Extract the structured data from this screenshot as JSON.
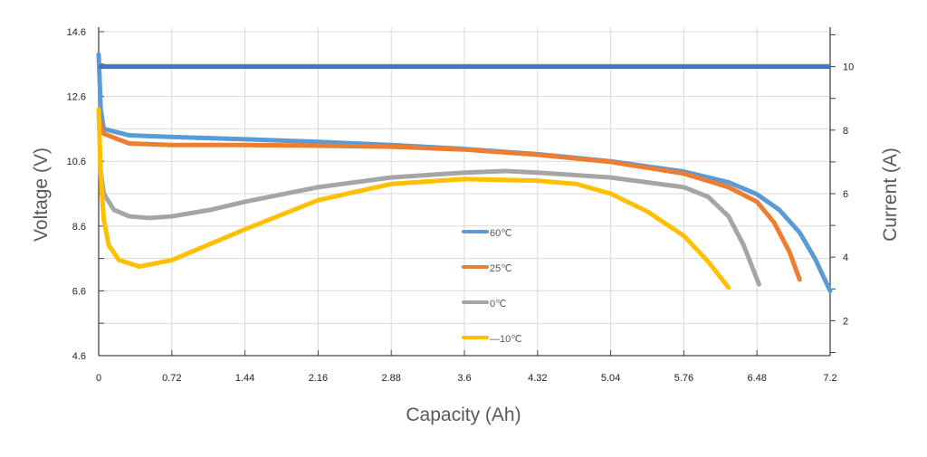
{
  "chart_data": {
    "type": "line",
    "title": "",
    "xlabel": "Capacity (Ah)",
    "ylabel": "Voltage (V)",
    "y2label": "Current (A)",
    "xlim": [
      0,
      7.2
    ],
    "ylim": [
      4.6,
      14.6
    ],
    "y2lim": [
      0.9,
      11.1
    ],
    "grid": true,
    "legend_position": "center",
    "x_ticks": [
      "0",
      "0.72",
      "1.44",
      "2.16",
      "2.88",
      "3.6",
      "4.32",
      "5.04",
      "5.76",
      "6.48",
      "7.2"
    ],
    "y_ticks": [
      "14.6",
      "12.6",
      "10.6",
      "8.6",
      "6.6",
      "4.6"
    ],
    "y2_ticks": [
      "10",
      "8",
      "6",
      "4",
      "2"
    ],
    "current_line": {
      "axis": "right",
      "color": "#4472C4",
      "x": [
        0,
        7.2
      ],
      "y": [
        10,
        10
      ]
    },
    "series": [
      {
        "name": "60℃",
        "color": "#5B9BD5",
        "x": [
          0,
          0.02,
          0.05,
          0.3,
          0.72,
          1.44,
          2.16,
          2.88,
          3.6,
          4.32,
          5.04,
          5.76,
          6.2,
          6.48,
          6.7,
          6.9,
          7.05,
          7.2
        ],
        "y": [
          13.9,
          12.2,
          11.6,
          11.4,
          11.35,
          11.28,
          11.2,
          11.1,
          10.98,
          10.82,
          10.6,
          10.28,
          9.95,
          9.58,
          9.1,
          8.4,
          7.6,
          6.6
        ]
      },
      {
        "name": "25℃",
        "color": "#ED7D31",
        "x": [
          0,
          0.02,
          0.05,
          0.3,
          0.72,
          1.44,
          2.16,
          2.88,
          3.6,
          4.32,
          5.04,
          5.76,
          6.2,
          6.48,
          6.65,
          6.8,
          6.9
        ],
        "y": [
          12.0,
          11.7,
          11.45,
          11.15,
          11.1,
          11.1,
          11.08,
          11.05,
          10.96,
          10.8,
          10.58,
          10.22,
          9.8,
          9.35,
          8.7,
          7.8,
          6.95
        ]
      },
      {
        "name": "0℃",
        "color": "#A5A5A5",
        "x": [
          0.02,
          0.05,
          0.15,
          0.3,
          0.5,
          0.72,
          1.1,
          1.44,
          2.16,
          2.88,
          3.6,
          4.0,
          4.32,
          5.04,
          5.76,
          6.0,
          6.2,
          6.35,
          6.5
        ],
        "y": [
          10.3,
          9.6,
          9.1,
          8.9,
          8.85,
          8.9,
          9.1,
          9.35,
          9.8,
          10.1,
          10.25,
          10.3,
          10.25,
          10.1,
          9.8,
          9.5,
          8.9,
          8.0,
          6.8
        ]
      },
      {
        "name": "—10℃",
        "color": "#FFC000",
        "x": [
          0,
          0.02,
          0.05,
          0.1,
          0.2,
          0.4,
          0.72,
          1.1,
          1.44,
          2.16,
          2.88,
          3.6,
          4.32,
          4.7,
          5.04,
          5.4,
          5.76,
          6.0,
          6.2
        ],
        "y": [
          12.2,
          10.2,
          8.8,
          8.0,
          7.55,
          7.35,
          7.55,
          8.05,
          8.5,
          9.4,
          9.9,
          10.05,
          10.0,
          9.9,
          9.6,
          9.05,
          8.3,
          7.5,
          6.7
        ]
      }
    ]
  }
}
